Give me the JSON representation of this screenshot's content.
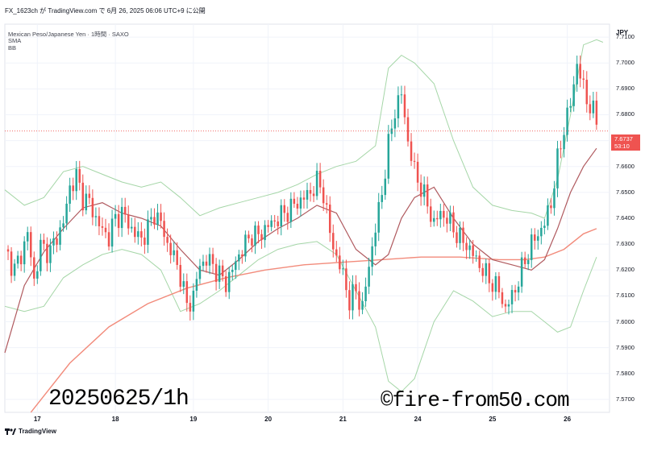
{
  "header": {
    "line": "FX_1623ch が TradingView.com で 6月 26, 2025 06:06 UTC+9 に公開",
    "symbol": "Mexican Peso/Japanese Yen · 1時間 · SAXO",
    "ind1": "SMA",
    "ind2": "BB"
  },
  "axis": {
    "currency": "JPY",
    "price_labels": [
      "7.7100",
      "7.7000",
      "7.6900",
      "7.6800",
      "7.6700",
      "7.6600",
      "7.6500",
      "7.6400",
      "7.6300",
      "7.6200",
      "7.6100",
      "7.6000",
      "7.5900",
      "7.5800",
      "7.5700"
    ],
    "date_labels": [
      "17",
      "18",
      "19",
      "20",
      "21",
      "24",
      "25",
      "26"
    ]
  },
  "last_price": {
    "price": "7.6737",
    "countdown": "53:10"
  },
  "watermark": {
    "left": "20250625/1h",
    "right": "©fire-from50.com"
  },
  "footer": {
    "brand": "TradingView"
  },
  "colors": {
    "up": "#26a69a",
    "down": "#ef5350",
    "bb": "#a5d6a7",
    "sma_short": "#b05a5f",
    "sma_long": "#f28b7b",
    "grid": "#f0f3fa"
  },
  "chart_data": {
    "type": "candlestick",
    "ylim": [
      7.565,
      7.715
    ],
    "dates": [
      "17",
      "18",
      "19",
      "20",
      "21",
      "24",
      "25",
      "26"
    ],
    "close_path": [
      [
        0,
        7.628
      ],
      [
        3,
        7.62
      ],
      [
        5,
        7.626
      ],
      [
        7,
        7.634
      ],
      [
        9,
        7.616
      ],
      [
        11,
        7.629
      ],
      [
        14,
        7.627
      ],
      [
        16,
        7.633
      ],
      [
        18,
        7.638
      ],
      [
        20,
        7.652
      ],
      [
        22,
        7.656
      ],
      [
        24,
        7.648
      ],
      [
        26,
        7.646
      ],
      [
        28,
        7.64
      ],
      [
        30,
        7.635
      ],
      [
        32,
        7.633
      ],
      [
        34,
        7.64
      ],
      [
        36,
        7.642
      ],
      [
        38,
        7.638
      ],
      [
        40,
        7.634
      ],
      [
        42,
        7.632
      ],
      [
        44,
        7.636
      ],
      [
        46,
        7.642
      ],
      [
        48,
        7.638
      ],
      [
        50,
        7.63
      ],
      [
        52,
        7.625
      ],
      [
        54,
        7.618
      ],
      [
        56,
        7.606
      ],
      [
        58,
        7.61
      ],
      [
        60,
        7.622
      ],
      [
        62,
        7.624
      ],
      [
        64,
        7.622
      ],
      [
        66,
        7.618
      ],
      [
        68,
        7.615
      ],
      [
        70,
        7.62
      ],
      [
        72,
        7.626
      ],
      [
        74,
        7.63
      ],
      [
        76,
        7.634
      ],
      [
        78,
        7.633
      ],
      [
        80,
        7.636
      ],
      [
        82,
        7.638
      ],
      [
        84,
        7.64
      ],
      [
        86,
        7.642
      ],
      [
        88,
        7.644
      ],
      [
        90,
        7.646
      ],
      [
        92,
        7.648
      ],
      [
        94,
        7.65
      ],
      [
        96,
        7.654
      ],
      [
        98,
        7.65
      ],
      [
        100,
        7.634
      ],
      [
        102,
        7.625
      ],
      [
        104,
        7.618
      ],
      [
        106,
        7.608
      ],
      [
        108,
        7.612
      ],
      [
        110,
        7.605
      ],
      [
        112,
        7.622
      ],
      [
        114,
        7.636
      ],
      [
        116,
        7.65
      ],
      [
        118,
        7.668
      ],
      [
        120,
        7.682
      ],
      [
        122,
        7.688
      ],
      [
        124,
        7.67
      ],
      [
        126,
        7.658
      ],
      [
        128,
        7.652
      ],
      [
        130,
        7.645
      ],
      [
        132,
        7.638
      ],
      [
        134,
        7.642
      ],
      [
        136,
        7.64
      ],
      [
        138,
        7.636
      ],
      [
        140,
        7.632
      ],
      [
        142,
        7.63
      ],
      [
        144,
        7.626
      ],
      [
        146,
        7.622
      ],
      [
        148,
        7.618
      ],
      [
        150,
        7.615
      ],
      [
        152,
        7.612
      ],
      [
        154,
        7.605
      ],
      [
        156,
        7.61
      ],
      [
        158,
        7.616
      ],
      [
        160,
        7.624
      ],
      [
        162,
        7.63
      ],
      [
        164,
        7.634
      ],
      [
        166,
        7.638
      ],
      [
        168,
        7.646
      ],
      [
        170,
        7.662
      ],
      [
        172,
        7.675
      ],
      [
        174,
        7.684
      ],
      [
        176,
        7.7
      ],
      [
        178,
        7.69
      ],
      [
        180,
        7.683
      ],
      [
        182,
        7.678
      ]
    ],
    "bb_upper": [
      [
        0,
        7.651
      ],
      [
        6,
        7.645
      ],
      [
        12,
        7.648
      ],
      [
        18,
        7.658
      ],
      [
        24,
        7.66
      ],
      [
        30,
        7.657
      ],
      [
        36,
        7.654
      ],
      [
        42,
        7.652
      ],
      [
        48,
        7.654
      ],
      [
        54,
        7.648
      ],
      [
        60,
        7.641
      ],
      [
        66,
        7.644
      ],
      [
        72,
        7.646
      ],
      [
        78,
        7.648
      ],
      [
        84,
        7.65
      ],
      [
        90,
        7.653
      ],
      [
        96,
        7.657
      ],
      [
        102,
        7.66
      ],
      [
        108,
        7.662
      ],
      [
        114,
        7.668
      ],
      [
        118,
        7.698
      ],
      [
        122,
        7.703
      ],
      [
        126,
        7.7
      ],
      [
        132,
        7.692
      ],
      [
        138,
        7.67
      ],
      [
        144,
        7.652
      ],
      [
        150,
        7.645
      ],
      [
        156,
        7.643
      ],
      [
        162,
        7.642
      ],
      [
        166,
        7.64
      ],
      [
        170,
        7.655
      ],
      [
        174,
        7.68
      ],
      [
        178,
        7.707
      ],
      [
        182,
        7.709
      ],
      [
        184,
        7.708
      ]
    ],
    "bb_lower": [
      [
        0,
        7.606
      ],
      [
        6,
        7.604
      ],
      [
        12,
        7.606
      ],
      [
        18,
        7.617
      ],
      [
        24,
        7.622
      ],
      [
        30,
        7.626
      ],
      [
        36,
        7.628
      ],
      [
        42,
        7.626
      ],
      [
        48,
        7.62
      ],
      [
        54,
        7.604
      ],
      [
        60,
        7.607
      ],
      [
        66,
        7.612
      ],
      [
        72,
        7.618
      ],
      [
        78,
        7.624
      ],
      [
        84,
        7.628
      ],
      [
        90,
        7.63
      ],
      [
        96,
        7.631
      ],
      [
        102,
        7.626
      ],
      [
        108,
        7.612
      ],
      [
        114,
        7.598
      ],
      [
        118,
        7.577
      ],
      [
        122,
        7.573
      ],
      [
        126,
        7.578
      ],
      [
        132,
        7.6
      ],
      [
        138,
        7.612
      ],
      [
        144,
        7.608
      ],
      [
        150,
        7.602
      ],
      [
        156,
        7.604
      ],
      [
        162,
        7.604
      ],
      [
        166,
        7.6
      ],
      [
        170,
        7.596
      ],
      [
        174,
        7.598
      ],
      [
        178,
        7.612
      ],
      [
        182,
        7.625
      ]
    ],
    "sma_short": [
      [
        0,
        7.588
      ],
      [
        6,
        7.614
      ],
      [
        12,
        7.627
      ],
      [
        18,
        7.636
      ],
      [
        24,
        7.644
      ],
      [
        30,
        7.646
      ],
      [
        36,
        7.642
      ],
      [
        42,
        7.64
      ],
      [
        48,
        7.637
      ],
      [
        54,
        7.628
      ],
      [
        60,
        7.62
      ],
      [
        66,
        7.618
      ],
      [
        72,
        7.624
      ],
      [
        78,
        7.631
      ],
      [
        84,
        7.636
      ],
      [
        90,
        7.64
      ],
      [
        96,
        7.645
      ],
      [
        102,
        7.642
      ],
      [
        108,
        7.628
      ],
      [
        114,
        7.622
      ],
      [
        118,
        7.626
      ],
      [
        122,
        7.64
      ],
      [
        126,
        7.648
      ],
      [
        132,
        7.652
      ],
      [
        138,
        7.64
      ],
      [
        144,
        7.63
      ],
      [
        150,
        7.624
      ],
      [
        156,
        7.622
      ],
      [
        162,
        7.62
      ],
      [
        166,
        7.624
      ],
      [
        170,
        7.636
      ],
      [
        174,
        7.65
      ],
      [
        178,
        7.66
      ],
      [
        182,
        7.667
      ]
    ],
    "sma_long": [
      [
        8,
        7.565
      ],
      [
        20,
        7.584
      ],
      [
        32,
        7.598
      ],
      [
        44,
        7.607
      ],
      [
        56,
        7.613
      ],
      [
        68,
        7.617
      ],
      [
        80,
        7.62
      ],
      [
        92,
        7.622
      ],
      [
        104,
        7.623
      ],
      [
        116,
        7.624
      ],
      [
        128,
        7.625
      ],
      [
        140,
        7.625
      ],
      [
        152,
        7.624
      ],
      [
        160,
        7.624
      ],
      [
        166,
        7.625
      ],
      [
        172,
        7.628
      ],
      [
        178,
        7.634
      ],
      [
        182,
        7.636
      ]
    ]
  }
}
